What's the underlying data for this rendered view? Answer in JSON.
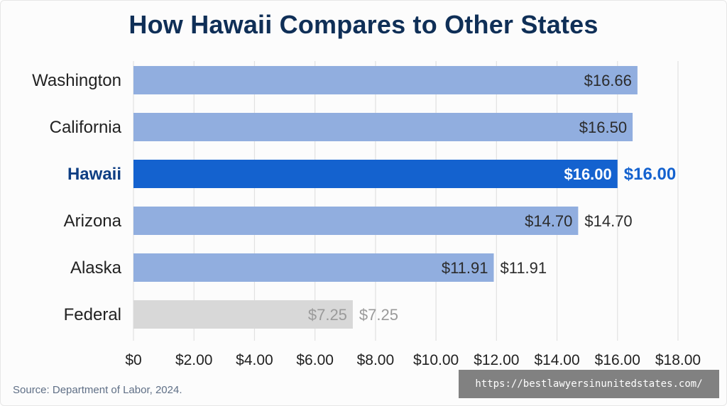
{
  "title": "How Hawaii Compares to Other States",
  "source": "Source: Department of Labor, 2024.",
  "watermark": "https://bestlawyersinunitedstates.com/",
  "colors": {
    "bar_default": "#91aedf",
    "bar_highlight": "#1462cf",
    "bar_federal": "#d8d8d8",
    "label_default": "#222222",
    "label_highlight": "#0e3e83",
    "value_highlight_inside": "#ffffff",
    "value_highlight_outside": "#1462cf",
    "value_federal": "#9a9a9a",
    "value_default": "#2b2b2b",
    "grid": "#e1e1e1",
    "title": "#0f2f57"
  },
  "chart_data": {
    "type": "bar",
    "orientation": "horizontal",
    "categories": [
      "Washington",
      "California",
      "Hawaii",
      "Arizona",
      "Alaska",
      "Federal"
    ],
    "values": [
      16.66,
      16.5,
      16.0,
      14.7,
      11.91,
      7.25
    ],
    "value_labels": [
      "$16.66",
      "$16.50",
      "$16.00",
      "$14.70",
      "$11.91",
      "$7.25"
    ],
    "outside_labels": [
      "",
      "",
      "$16.00",
      "$14.70",
      "$11.91",
      "$7.25"
    ],
    "highlight_index": 2,
    "muted_index": 5,
    "xlim": [
      0,
      18
    ],
    "xticks": [
      0,
      2,
      4,
      6,
      8,
      10,
      12,
      14,
      16,
      18
    ],
    "xtick_labels": [
      "$0",
      "$2.00",
      "$4.00",
      "$6.00",
      "$8.00",
      "$10.00",
      "$12.00",
      "$14.00",
      "$16.00",
      "$18.00"
    ],
    "title": "How Hawaii Compares to Other States",
    "xlabel": "",
    "ylabel": "",
    "grid": true,
    "legend": "none"
  }
}
